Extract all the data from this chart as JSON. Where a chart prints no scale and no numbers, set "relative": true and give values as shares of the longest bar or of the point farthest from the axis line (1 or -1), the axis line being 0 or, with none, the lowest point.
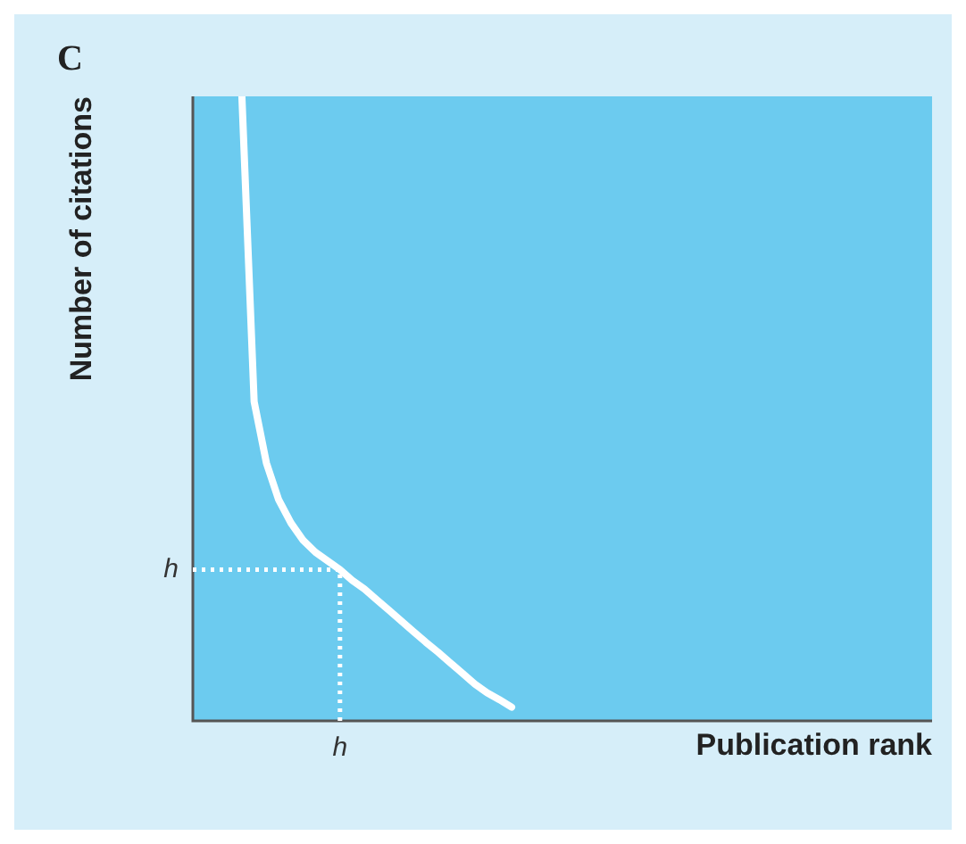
{
  "chart_data": {
    "type": "line",
    "title": "C",
    "xlabel": "Publication rank",
    "ylabel": "Number of citations",
    "relative": true,
    "categories": [
      null,
      null,
      null,
      null,
      null,
      null,
      null,
      null,
      null,
      null,
      null,
      null,
      null,
      null,
      null,
      null,
      null,
      null,
      null,
      null,
      null,
      null,
      null,
      null,
      null,
      null,
      null,
      null,
      null,
      null,
      null,
      null,
      null,
      null,
      null,
      null,
      null,
      null,
      null,
      null,
      null,
      null,
      null,
      null,
      null,
      null,
      null,
      null,
      null,
      null,
      null,
      null,
      null,
      null,
      null,
      null,
      null,
      null,
      null,
      null,
      null
    ],
    "series": [
      {
        "color": "#ffffff",
        "values": [
          null,
          null,
          null,
          null,
          1.0,
          0.511,
          0.413,
          0.354,
          0.317,
          0.289,
          0.27,
          0.256,
          0.242,
          0.225,
          0.211,
          0.194,
          0.177,
          0.16,
          0.143,
          0.126,
          0.11,
          0.093,
          0.076,
          0.059,
          0.045,
          0.034,
          0.022,
          null,
          null,
          null,
          null,
          null,
          null,
          null,
          null,
          null,
          null,
          null,
          null,
          null,
          null,
          null,
          null,
          null,
          null,
          null,
          null,
          null,
          null,
          null,
          null,
          null,
          null,
          null,
          null,
          null,
          null,
          null,
          null,
          null,
          null
        ]
      }
    ],
    "ref_lines": [
      {
        "axis": "y",
        "value": 0.242,
        "label": "h",
        "color": "#ffffff",
        "line_style": "dotted"
      }
    ],
    "marker": "none",
    "line_style": "solid",
    "legend": false
  }
}
